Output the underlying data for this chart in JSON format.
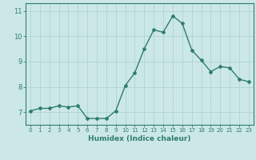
{
  "x": [
    0,
    1,
    2,
    3,
    4,
    5,
    6,
    7,
    8,
    9,
    10,
    11,
    12,
    13,
    14,
    15,
    16,
    17,
    18,
    19,
    20,
    21,
    22,
    23
  ],
  "y": [
    7.05,
    7.15,
    7.15,
    7.25,
    7.2,
    7.25,
    6.75,
    6.75,
    6.75,
    7.05,
    8.05,
    8.55,
    9.5,
    10.25,
    10.15,
    10.8,
    10.5,
    9.45,
    9.05,
    8.6,
    8.8,
    8.75,
    8.3,
    8.2
  ],
  "line_color": "#2e7d6e",
  "bg_color": "#cce8e6",
  "grid_color": "#aed4d0",
  "xlabel": "Humidex (Indice chaleur)",
  "xlim": [
    -0.5,
    23.5
  ],
  "ylim": [
    6.5,
    11.3
  ],
  "yticks": [
    7,
    8,
    9,
    10,
    11
  ],
  "xticks": [
    0,
    1,
    2,
    3,
    4,
    5,
    6,
    7,
    8,
    9,
    10,
    11,
    12,
    13,
    14,
    15,
    16,
    17,
    18,
    19,
    20,
    21,
    22,
    23
  ],
  "tick_color": "#2e7d6e",
  "axis_color": "#2e7d6e",
  "marker": "D",
  "markersize": 2,
  "linewidth": 1.0,
  "xlabel_fontsize": 6.5,
  "xtick_fontsize": 5.0,
  "ytick_fontsize": 6.0
}
